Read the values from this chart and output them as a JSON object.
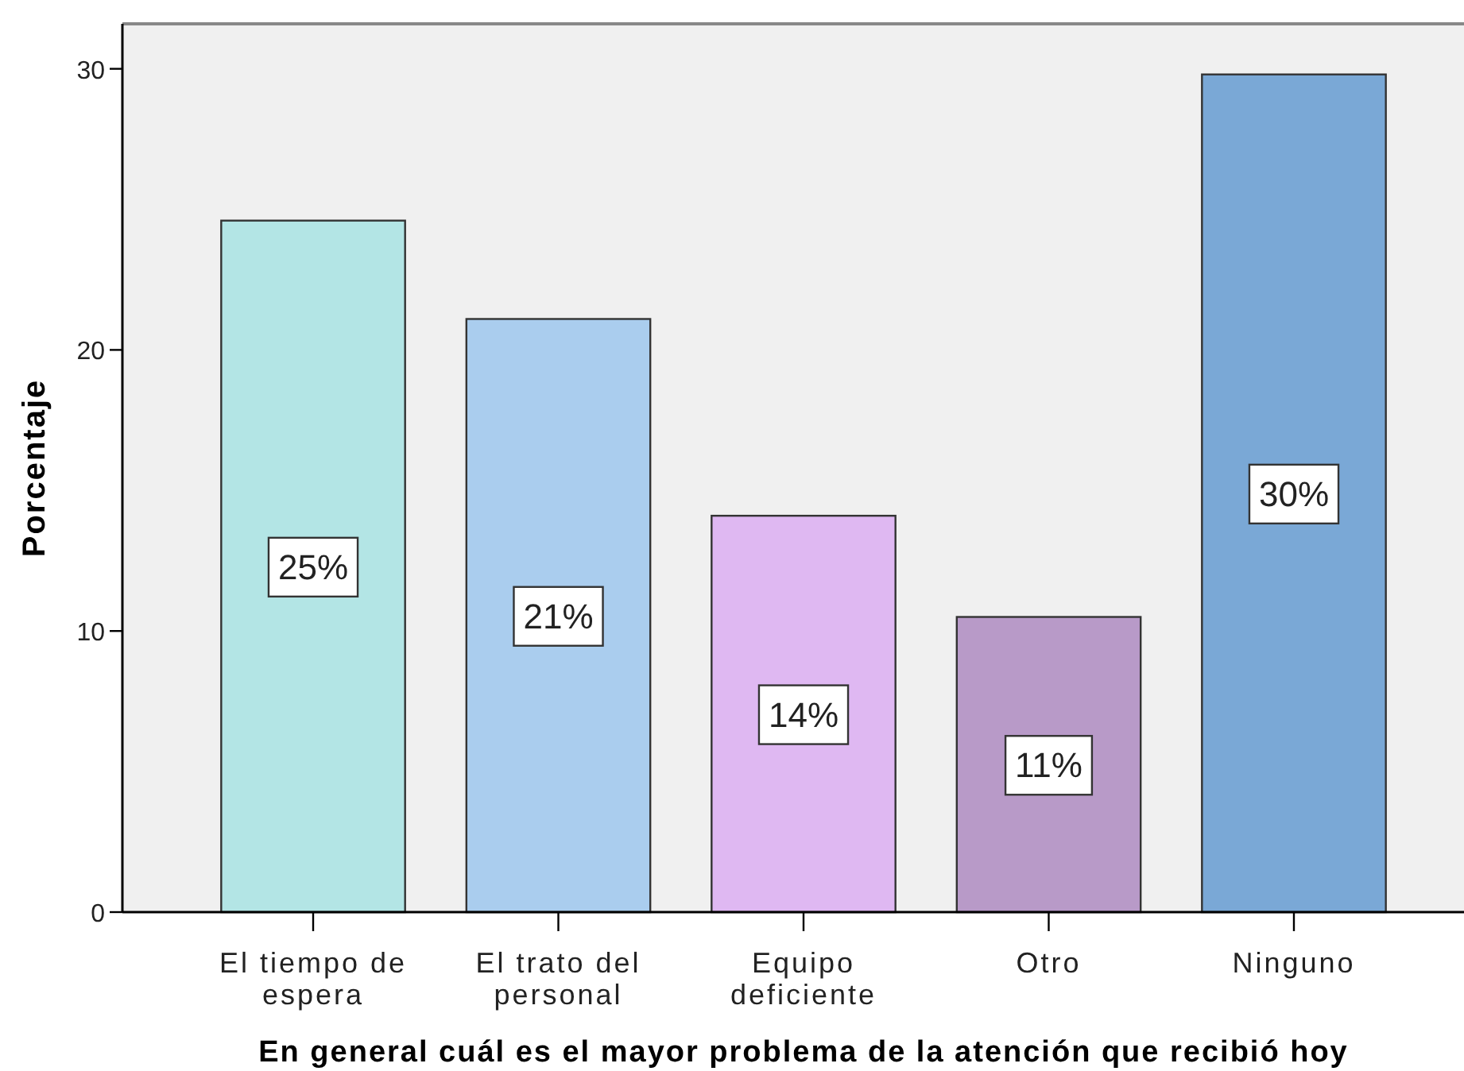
{
  "chart_data": {
    "type": "bar",
    "xlabel": "En general cuál es el mayor problema de la atención que recibió hoy",
    "ylabel": "Porcentaje",
    "categories": [
      "El tiempo de espera",
      "El trato del personal",
      "Equipo deficiente",
      "Otro",
      "Ninguno"
    ],
    "values": [
      24.6,
      21.1,
      14.1,
      10.5,
      29.8
    ],
    "colors": [
      "#b3e5e5",
      "#aacdee",
      "#dfb8f2",
      "#b89ac8",
      "#7aa8d6"
    ],
    "ylim": [
      0,
      31.6
    ],
    "yticks": [
      0,
      10,
      20,
      30
    ],
    "value_labels": [
      "25%",
      "21%",
      "14%",
      "11%",
      "30%"
    ]
  }
}
